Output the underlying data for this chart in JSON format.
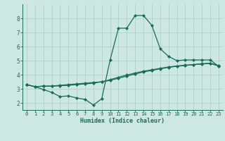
{
  "xlabel": "Humidex (Indice chaleur)",
  "background_color": "#cce8e0",
  "grid_color": "#aaccc4",
  "line_color": "#1a6b5a",
  "xlim": [
    -0.5,
    23.5
  ],
  "ylim": [
    1.5,
    9.0
  ],
  "xticks": [
    0,
    1,
    2,
    3,
    4,
    5,
    6,
    7,
    8,
    9,
    10,
    11,
    12,
    13,
    14,
    15,
    16,
    17,
    18,
    19,
    20,
    21,
    22,
    23
  ],
  "yticks": [
    2,
    3,
    4,
    5,
    6,
    7,
    8
  ],
  "line1_x": [
    0,
    1,
    2,
    3,
    4,
    5,
    6,
    7,
    8,
    9,
    10,
    11,
    12,
    13,
    14,
    15,
    16,
    17,
    18,
    19,
    20,
    21,
    22,
    23
  ],
  "line1_y": [
    3.3,
    3.15,
    2.95,
    2.75,
    2.45,
    2.5,
    2.35,
    2.25,
    1.85,
    2.3,
    5.05,
    7.3,
    7.3,
    8.2,
    8.2,
    7.5,
    5.85,
    5.3,
    5.0,
    5.05,
    5.05,
    5.05,
    5.05,
    4.6
  ],
  "line2_x": [
    0,
    1,
    2,
    3,
    4,
    5,
    6,
    7,
    8,
    9,
    10,
    11,
    12,
    13,
    14,
    15,
    16,
    17,
    18,
    19,
    20,
    21,
    22,
    23
  ],
  "line2_y": [
    3.3,
    3.15,
    3.2,
    3.2,
    3.25,
    3.3,
    3.35,
    3.4,
    3.45,
    3.5,
    3.6,
    3.75,
    3.9,
    4.05,
    4.2,
    4.3,
    4.42,
    4.52,
    4.6,
    4.65,
    4.72,
    4.78,
    4.82,
    4.65
  ],
  "line3_x": [
    0,
    1,
    2,
    3,
    4,
    5,
    6,
    7,
    8,
    9,
    10,
    11,
    12,
    13,
    14,
    15,
    16,
    17,
    18,
    19,
    20,
    21,
    22,
    23
  ],
  "line3_y": [
    3.3,
    3.15,
    3.18,
    3.18,
    3.22,
    3.25,
    3.3,
    3.35,
    3.4,
    3.5,
    3.65,
    3.82,
    3.98,
    4.12,
    4.25,
    4.35,
    4.45,
    4.55,
    4.62,
    4.68,
    4.72,
    4.76,
    4.8,
    4.62
  ]
}
